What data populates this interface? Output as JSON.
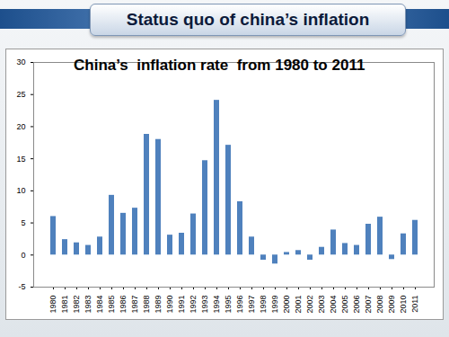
{
  "slide_title": "Status quo of  china’s inflation",
  "chart_data": {
    "type": "bar",
    "title": "China’s  inflation rate  from 1980 to 2011",
    "categories": [
      "1980",
      "1981",
      "1982",
      "1983",
      "1984",
      "1985",
      "1986",
      "1987",
      "1988",
      "1989",
      "1990",
      "1991",
      "1992",
      "1993",
      "1994",
      "1995",
      "1996",
      "1997",
      "1998",
      "1999",
      "2000",
      "2001",
      "2002",
      "2003",
      "2004",
      "2005",
      "2006",
      "2007",
      "2008",
      "2009",
      "2010",
      "2011"
    ],
    "values": [
      6.0,
      2.4,
      1.9,
      1.5,
      2.8,
      9.3,
      6.5,
      7.3,
      18.8,
      18.0,
      3.1,
      3.4,
      6.4,
      14.7,
      24.1,
      17.1,
      8.3,
      2.8,
      -0.8,
      -1.4,
      0.4,
      0.7,
      -0.8,
      1.2,
      3.9,
      1.8,
      1.5,
      4.8,
      5.9,
      -0.7,
      3.3,
      5.4
    ],
    "color": "#4f81bd",
    "ylim": [
      -5,
      30
    ],
    "yticks": [
      -5,
      0,
      5,
      10,
      15,
      20,
      25,
      30
    ],
    "grid": false
  }
}
